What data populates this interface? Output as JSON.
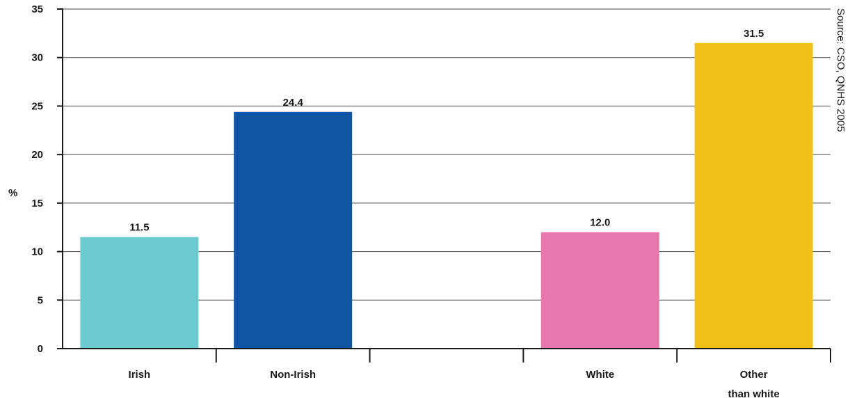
{
  "chart_data": {
    "type": "bar",
    "ylabel": "%",
    "ylim": [
      0,
      35
    ],
    "yticks": [
      0,
      5,
      10,
      15,
      20,
      25,
      30,
      35
    ],
    "grid": true,
    "source": "Source: CSO, QNHS 2005",
    "categories": [
      {
        "lines": [
          "Irish"
        ],
        "value": 11.5,
        "label": "11.5",
        "color": "#6ecad1"
      },
      {
        "lines": [
          "Non-Irish"
        ],
        "value": 24.4,
        "label": "24.4",
        "color": "#0f55a3"
      },
      {
        "lines": [],
        "value": null,
        "label": "",
        "color": ""
      },
      {
        "lines": [
          "White"
        ],
        "value": 12.0,
        "label": "12.0",
        "color": "#e778af"
      },
      {
        "lines": [
          "Other",
          "than white"
        ],
        "value": 31.5,
        "label": "31.5",
        "color": "#f0c018"
      }
    ]
  }
}
